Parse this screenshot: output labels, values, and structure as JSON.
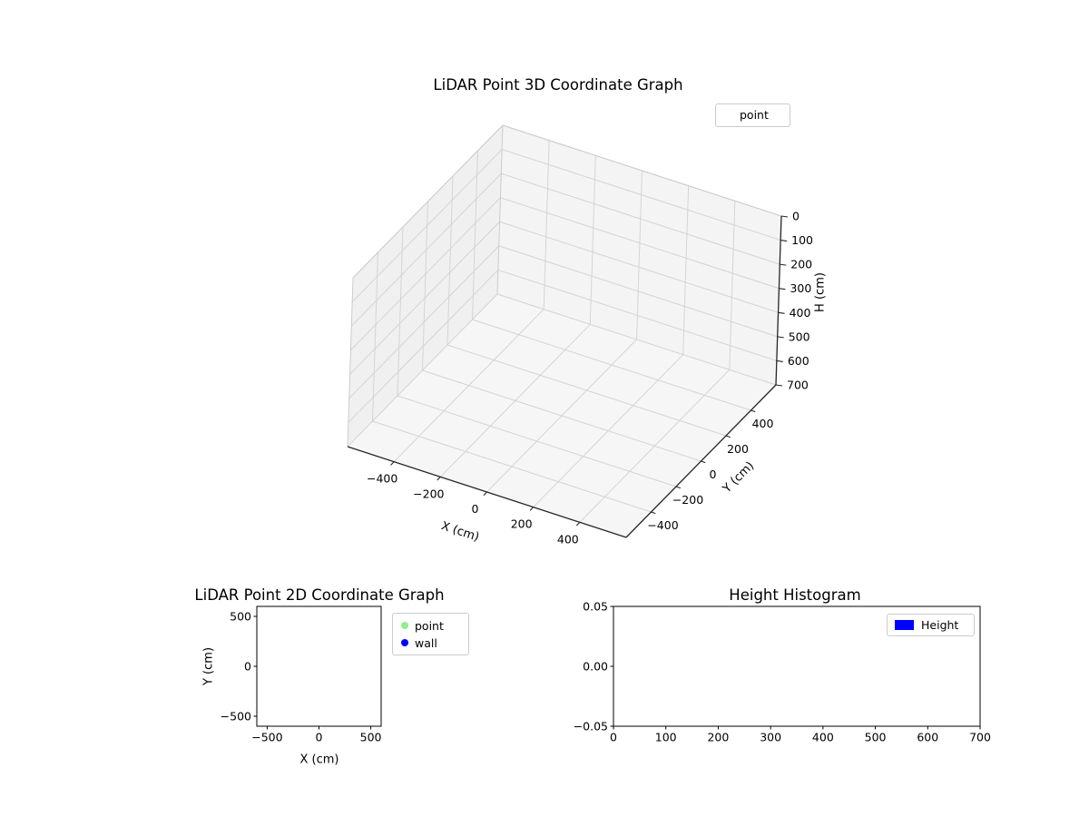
{
  "figure": {
    "background": "#ffffff"
  },
  "chart_data": [
    {
      "id": "lidar-3d",
      "type": "scatter",
      "projection": "3d",
      "title": "LiDAR Point 3D Coordinate Graph",
      "xlabel": "X (cm)",
      "ylabel": "Y (cm)",
      "zlabel": "H (cm)",
      "xlim": [
        -600,
        600
      ],
      "ylim": [
        -600,
        600
      ],
      "zlim": [
        0,
        700
      ],
      "z_axis_inverted": true,
      "xticks": {
        "values": [
          -400,
          -200,
          0,
          200,
          400
        ],
        "labels": [
          "−400",
          "−200",
          "0",
          "200",
          "400"
        ]
      },
      "yticks": {
        "values": [
          -400,
          -200,
          0,
          200,
          400
        ],
        "labels": [
          "−400",
          "−200",
          "0",
          "200",
          "400"
        ]
      },
      "zticks": {
        "values": [
          0,
          100,
          200,
          300,
          400,
          500,
          600,
          700
        ],
        "labels": [
          "0",
          "100",
          "200",
          "300",
          "400",
          "500",
          "600",
          "700"
        ]
      },
      "grid": true,
      "legend": {
        "position": "upper-right-outside",
        "items": [
          {
            "label": "point",
            "marker": "none"
          }
        ]
      },
      "series": [
        {
          "name": "point",
          "color": "#90ee90",
          "points": []
        }
      ]
    },
    {
      "id": "lidar-2d",
      "type": "scatter",
      "title": "LiDAR Point 2D Coordinate Graph",
      "xlabel": "X (cm)",
      "ylabel": "Y (cm)",
      "xlim": [
        -600,
        600
      ],
      "ylim": [
        -600,
        600
      ],
      "xticks": {
        "values": [
          -500,
          0,
          500
        ],
        "labels": [
          "−500",
          "0",
          "500"
        ]
      },
      "yticks": {
        "values": [
          -500,
          0,
          500
        ],
        "labels": [
          "−500",
          "0",
          "500"
        ]
      },
      "grid": false,
      "legend": {
        "position": "outside-right",
        "items": [
          {
            "label": "point",
            "marker": "circle",
            "color": "#90ee90"
          },
          {
            "label": "wall",
            "marker": "circle",
            "color": "#0000ff"
          }
        ]
      },
      "series": [
        {
          "name": "point",
          "color": "#90ee90",
          "points": []
        },
        {
          "name": "wall",
          "color": "#0000ff",
          "points": []
        }
      ]
    },
    {
      "id": "height-histogram",
      "type": "bar",
      "title": "Height Histogram",
      "xlabel": "",
      "ylabel": "",
      "xlim": [
        0,
        700
      ],
      "ylim": [
        -0.05,
        0.05
      ],
      "xticks": {
        "values": [
          0,
          100,
          200,
          300,
          400,
          500,
          600,
          700
        ],
        "labels": [
          "0",
          "100",
          "200",
          "300",
          "400",
          "500",
          "600",
          "700"
        ]
      },
      "yticks": {
        "values": [
          -0.05,
          0,
          0.05
        ],
        "labels": [
          "−0.05",
          "0.00",
          "0.05"
        ]
      },
      "grid": false,
      "legend": {
        "position": "upper-right-inside",
        "items": [
          {
            "label": "Height",
            "marker": "rect",
            "color": "#0000ff"
          }
        ]
      },
      "series": [
        {
          "name": "Height",
          "color": "#0000ff",
          "values": []
        }
      ]
    }
  ]
}
